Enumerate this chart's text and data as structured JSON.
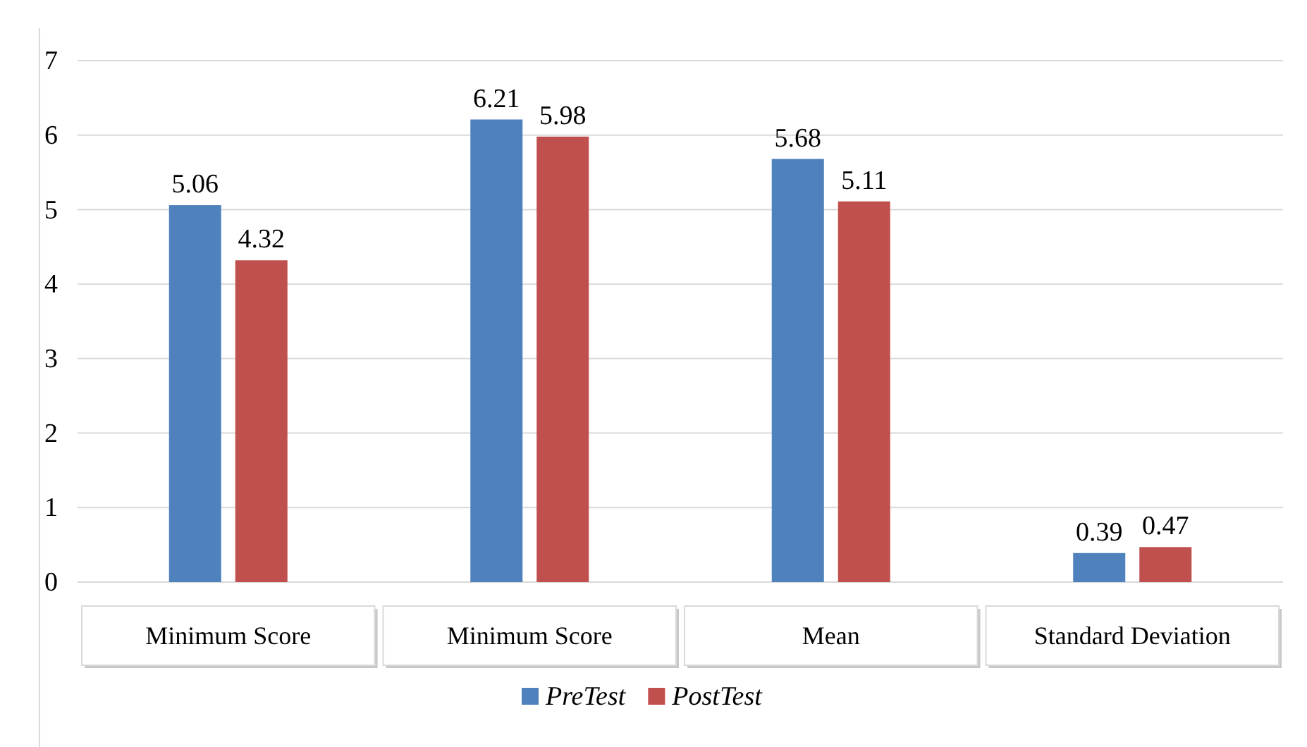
{
  "chart_data": {
    "type": "bar",
    "categories": [
      "Minimum Score",
      "Minimum Score",
      "Mean",
      "Standard Deviation"
    ],
    "series": [
      {
        "name": "PreTest",
        "color": "#4f81bd",
        "values": [
          5.06,
          6.21,
          5.68,
          0.39
        ]
      },
      {
        "name": "PostTest",
        "color": "#c0504d",
        "values": [
          4.32,
          5.98,
          5.11,
          0.47
        ]
      }
    ],
    "ylim": [
      0,
      7
    ],
    "yticks": [
      0,
      1,
      2,
      3,
      4,
      5,
      6,
      7
    ],
    "grid": "y",
    "data_labels": true,
    "legend": "bottom"
  }
}
